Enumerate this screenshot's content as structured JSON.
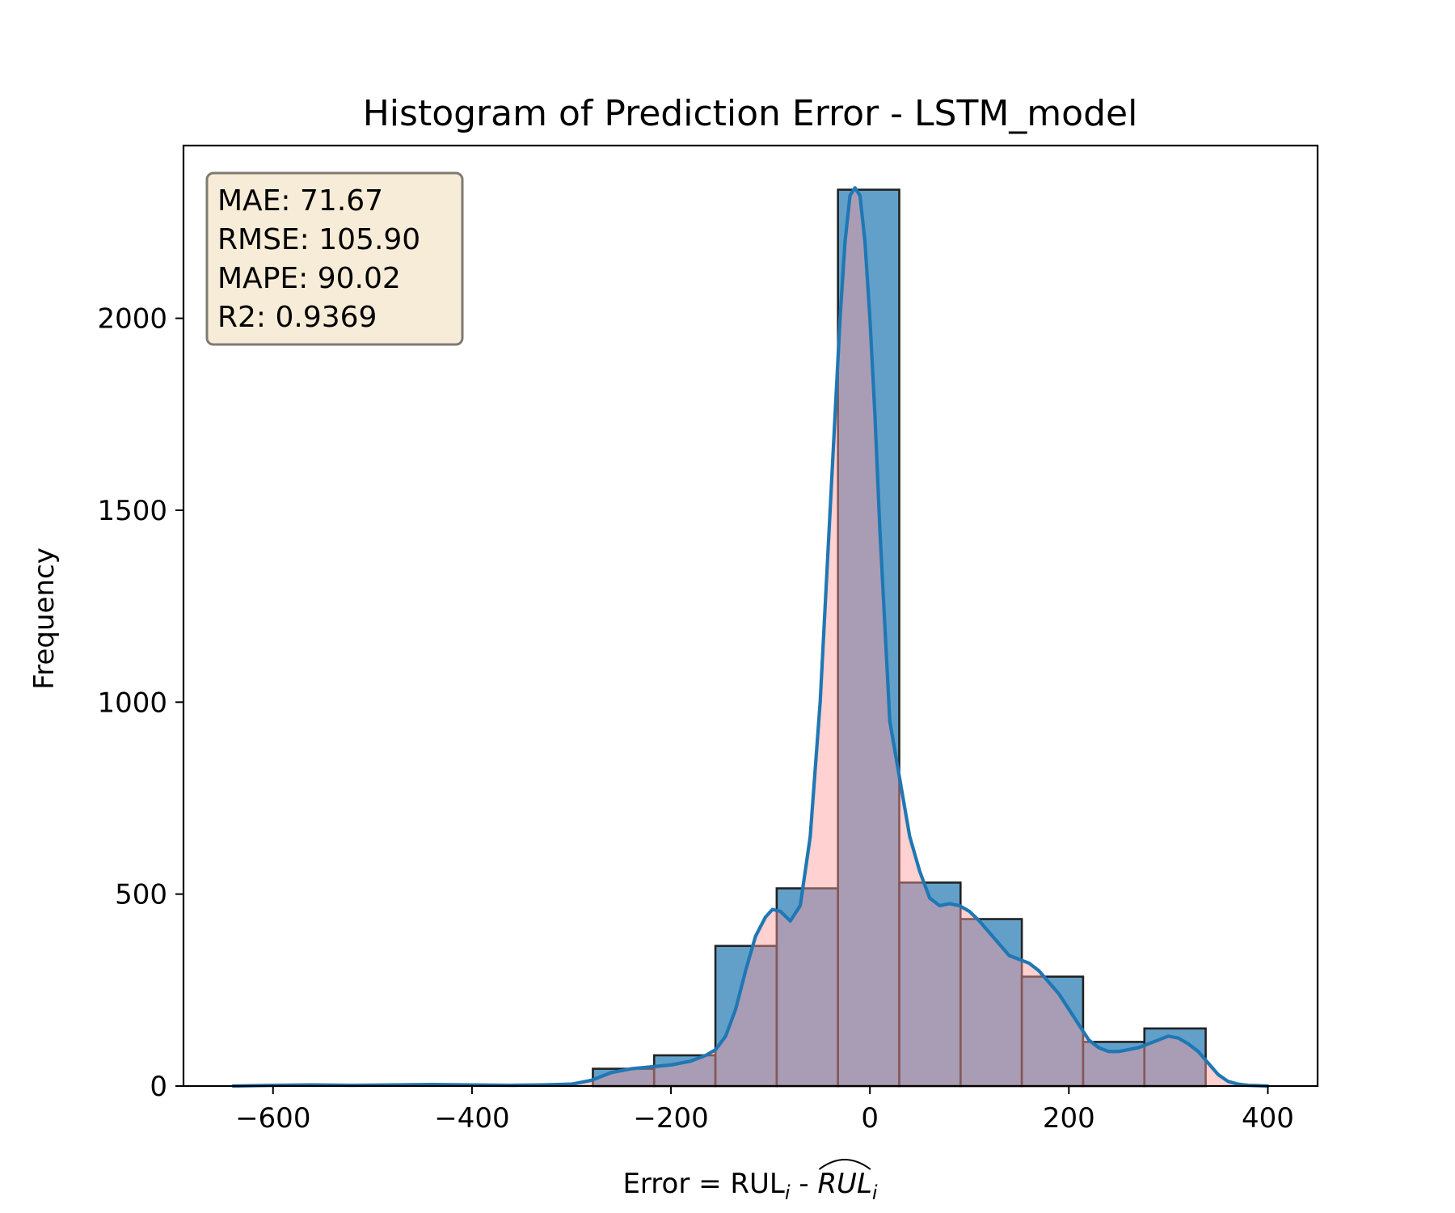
{
  "chart_data": {
    "type": "bar",
    "title": "Histogram of Prediction Error - LSTM_model",
    "xlabel": {
      "prefix": "Error = RUL",
      "sub1": "i",
      "middle": " - ",
      "hat": "RUL",
      "sub2": "i"
    },
    "ylabel": "Frequency",
    "xlim": [
      -690,
      450
    ],
    "ylim": [
      0,
      2450
    ],
    "x_ticks": [
      -600,
      -400,
      -200,
      0,
      200,
      400
    ],
    "x_tick_labels": [
      "−600",
      "−400",
      "−200",
      "0",
      "200",
      "400"
    ],
    "y_ticks": [
      0,
      500,
      1000,
      1500,
      2000
    ],
    "y_tick_labels": [
      "0",
      "500",
      "1000",
      "1500",
      "2000"
    ],
    "grid": false,
    "stats_box": {
      "position": "top-left",
      "lines": [
        "MAE: 71.67",
        "RMSE: 105.90",
        "MAPE: 90.02",
        "R2: 0.9369"
      ],
      "background": "#f7ecd7",
      "border": "#7f7a72"
    },
    "series": [
      {
        "kind": "histogram",
        "bin_edges": [
          -278.5,
          -216.9,
          -155.3,
          -93.7,
          -32.1,
          29.5,
          91.1,
          152.7,
          214.3,
          275.9,
          337.5
        ],
        "counts": [
          45,
          80,
          365,
          515,
          2335,
          530,
          435,
          285,
          115,
          150
        ],
        "fill": "#1f77b4",
        "fill_opacity": 0.7,
        "edge": "#222222"
      },
      {
        "kind": "kde",
        "x": [
          -640,
          -600,
          -560,
          -520,
          -480,
          -440,
          -400,
          -360,
          -330,
          -300,
          -280,
          -260,
          -240,
          -220,
          -200,
          -180,
          -165,
          -155,
          -145,
          -135,
          -125,
          -115,
          -105,
          -98,
          -90,
          -80,
          -70,
          -60,
          -50,
          -40,
          -30,
          -25,
          -20,
          -15,
          -10,
          -5,
          0,
          5,
          10,
          20,
          30,
          40,
          50,
          60,
          70,
          80,
          90,
          100,
          110,
          120,
          130,
          140,
          150,
          160,
          170,
          180,
          190,
          200,
          210,
          220,
          230,
          240,
          250,
          260,
          270,
          280,
          290,
          300,
          310,
          320,
          330,
          340,
          350,
          360,
          370,
          380,
          390,
          400
        ],
        "y": [
          0,
          2,
          3,
          2,
          3,
          4,
          3,
          2,
          3,
          5,
          15,
          35,
          45,
          50,
          55,
          65,
          80,
          95,
          130,
          200,
          300,
          390,
          440,
          460,
          455,
          430,
          470,
          650,
          1000,
          1500,
          2000,
          2200,
          2320,
          2340,
          2320,
          2200,
          2000,
          1750,
          1450,
          950,
          800,
          650,
          560,
          490,
          470,
          475,
          470,
          455,
          430,
          400,
          370,
          340,
          330,
          320,
          300,
          270,
          240,
          200,
          160,
          120,
          100,
          90,
          90,
          95,
          100,
          110,
          120,
          130,
          125,
          110,
          90,
          60,
          30,
          12,
          5,
          2,
          1,
          0
        ],
        "color": "#1f77b4",
        "fill": "#ff9999",
        "fill_opacity": 0.45
      }
    ]
  }
}
